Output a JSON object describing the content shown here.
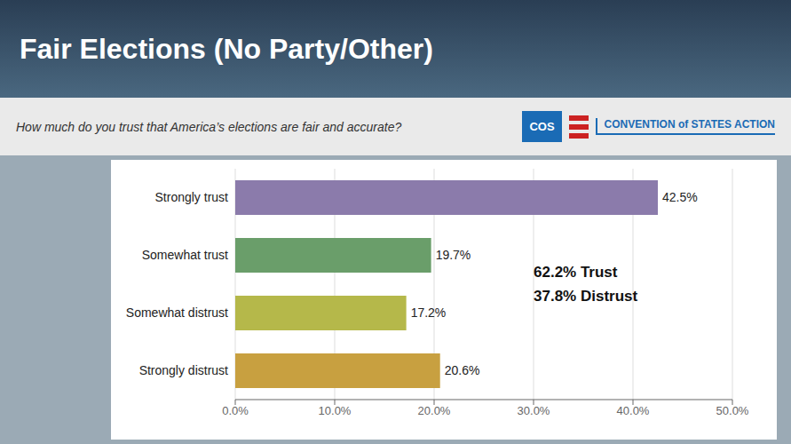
{
  "chart_data": {
    "type": "bar",
    "orientation": "horizontal",
    "title": "Fair Elections (No Party/Other)",
    "subtitle": "How much do you trust that America’s elections are fair and accurate?",
    "logo": [
      "COS",
      "CONVENTION of STATES ACTION"
    ],
    "categories": [
      "Strongly trust",
      "Somewhat trust",
      "Somewhat distrust",
      "Strongly distrust"
    ],
    "values": [
      42.5,
      19.7,
      17.2,
      20.6
    ],
    "value_labels": [
      "42.5%",
      "19.7%",
      "17.2%",
      "20.6%"
    ],
    "colors": [
      "#8B7BAB",
      "#6A9E6A",
      "#B5B84A",
      "#C8A040"
    ],
    "xlim": [
      0,
      50
    ],
    "xticks": [
      {
        "value": 0,
        "label": "0.0%"
      },
      {
        "value": 10,
        "label": "10.0%"
      },
      {
        "value": 20,
        "label": "20.0%"
      },
      {
        "value": 30,
        "label": "30.0%"
      },
      {
        "value": 40,
        "label": "40.0%"
      },
      {
        "value": 50,
        "label": "50.0%"
      }
    ],
    "annotation": "62.2% Trust\n37.8% Distrust",
    "grid": true,
    "data_labels": true
  }
}
